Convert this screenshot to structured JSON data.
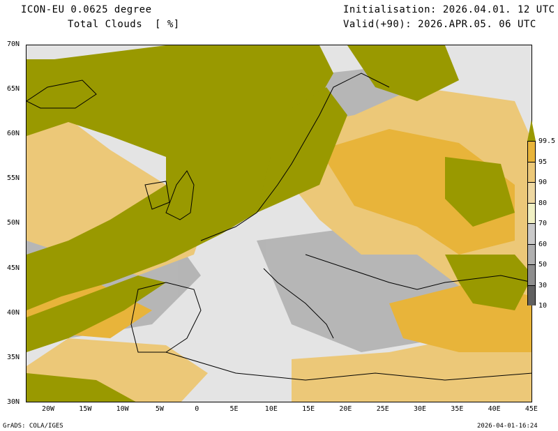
{
  "header": {
    "model": "ICON-EU 0.0625 degree",
    "field": "Total Clouds  [ %]",
    "init": "Initialisation: 2026.04.01. 12 UTC",
    "valid": "Valid(+90): 2026.APR.05. 06 UTC"
  },
  "lat_labels": [
    "70N",
    "65N",
    "60N",
    "55N",
    "50N",
    "45N",
    "40N",
    "35N",
    "30N"
  ],
  "lon_labels": [
    "20W",
    "15W",
    "10W",
    "5W",
    "0",
    "5E",
    "10E",
    "15E",
    "20E",
    "25E",
    "30E",
    "35E",
    "40E",
    "45E"
  ],
  "colorbar": {
    "labels": [
      "99.5",
      "95",
      "90",
      "80",
      "70",
      "60",
      "50",
      "30",
      "10"
    ],
    "colors": [
      "#999900",
      "#e8b43a",
      "#ecc878",
      "#eed8a2",
      "#f0f0c4",
      "#cacaca",
      "#b0b0b0",
      "#8e8e8e",
      "#606060"
    ]
  },
  "footer": {
    "left": "GrADS: COLA/IGES",
    "right": "2026-04-01-16:24"
  }
}
